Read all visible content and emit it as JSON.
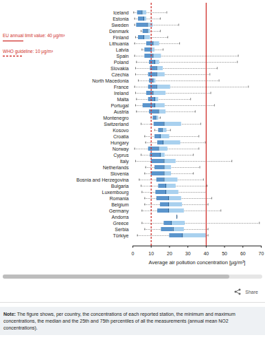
{
  "chart_data": {
    "type": "box",
    "orientation": "horizontal",
    "categories": [
      "Iceland",
      "Estonia",
      "Sweden",
      "Denmark",
      "Finland",
      "Lithuania",
      "Latvia",
      "Spain",
      "Poland",
      "Slovakia",
      "Czechia",
      "North Macedonia",
      "France",
      "Ireland",
      "Malta",
      "Portugal",
      "Austria",
      "Montenegro",
      "Switzerland",
      "Kosovo",
      "Croatia",
      "Hungary",
      "Norway",
      "Cyprus",
      "Italy",
      "Netherlands",
      "Slovenia",
      "Bosnia and Herzegovina",
      "Bulgaria",
      "Luxembourg",
      "Romania",
      "Belgium",
      "Germany",
      "Andorra",
      "Greece",
      "Serbia",
      "Türkiye"
    ],
    "min": [
      0.5,
      1,
      1,
      4.5,
      1.5,
      1,
      5,
      1,
      2,
      1.5,
      1.5,
      3,
      1,
      1.5,
      2,
      1.5,
      2,
      10,
      4.5,
      12,
      6.5,
      7,
      1,
      4.5,
      1.5,
      7,
      6.5,
      3.5,
      4.5,
      5,
      6.5,
      6.5,
      5,
      24,
      5,
      6.5,
      2.5
    ],
    "q1": [
      2.5,
      3,
      2,
      5.5,
      3,
      7.5,
      6.5,
      6.5,
      9,
      9.5,
      8.5,
      9,
      8.5,
      7.5,
      8.5,
      5.5,
      9,
      11,
      11.5,
      14,
      12,
      13.5,
      8.5,
      9.5,
      10,
      12,
      10,
      13,
      14,
      12.5,
      13,
      15,
      13.5,
      24,
      17,
      15.5,
      20
    ],
    "median": [
      5,
      6,
      8,
      8,
      6,
      11,
      10,
      11,
      12,
      13,
      13,
      11,
      13,
      11,
      12,
      12,
      14,
      12.5,
      17,
      16,
      15,
      16.5,
      14,
      15,
      17,
      17,
      17,
      17,
      18,
      18,
      19.5,
      19.5,
      19.5,
      24,
      21,
      22,
      27
    ],
    "q3": [
      7.5,
      7.5,
      11,
      9.5,
      9.5,
      14.5,
      12,
      15.5,
      14.5,
      16.5,
      17.5,
      12.5,
      20.5,
      18,
      14,
      17.5,
      18,
      14,
      26.5,
      18.5,
      20,
      26,
      19,
      17.5,
      23.5,
      21,
      21,
      24.5,
      23.5,
      25,
      26.5,
      27,
      28,
      24,
      28.5,
      28,
      40
    ],
    "max": [
      18.5,
      15,
      25,
      15,
      19,
      25.5,
      16.5,
      57.5,
      57,
      46,
      42,
      47,
      63,
      42.5,
      31.5,
      44.5,
      34,
      15,
      37,
      20.5,
      36,
      39.5,
      36,
      33,
      54,
      36.5,
      33,
      38.5,
      40.5,
      40,
      43,
      41,
      48,
      24,
      69,
      41,
      41
    ],
    "colors": [
      "#5b95cc",
      "#a9d1ef"
    ],
    "xlabel": "Average air pollution concentration [µg/m³]",
    "xlim": [
      0,
      70
    ],
    "xticks": [
      0,
      10,
      20,
      30,
      40,
      50,
      60,
      70
    ],
    "grid": false,
    "legend": "top-left",
    "reference_lines": [
      {
        "value": 40,
        "label": "EU annual limit value: 40 µg/m³",
        "color": "#d0312d",
        "line_style": "solid"
      },
      {
        "value": 10,
        "label": "WHO guideline: 10 µg/m³",
        "color": "#d0312d",
        "line_style": "dashed"
      }
    ],
    "toolbar_label": "Share",
    "note_label": "Note:",
    "note": "The figure shows, per country, the concentrations of each reported station, the minimum and maximum concentrations, the median and the 25th and 75th percentiles of all the measurements (annual mean NO2 concentrations)."
  }
}
